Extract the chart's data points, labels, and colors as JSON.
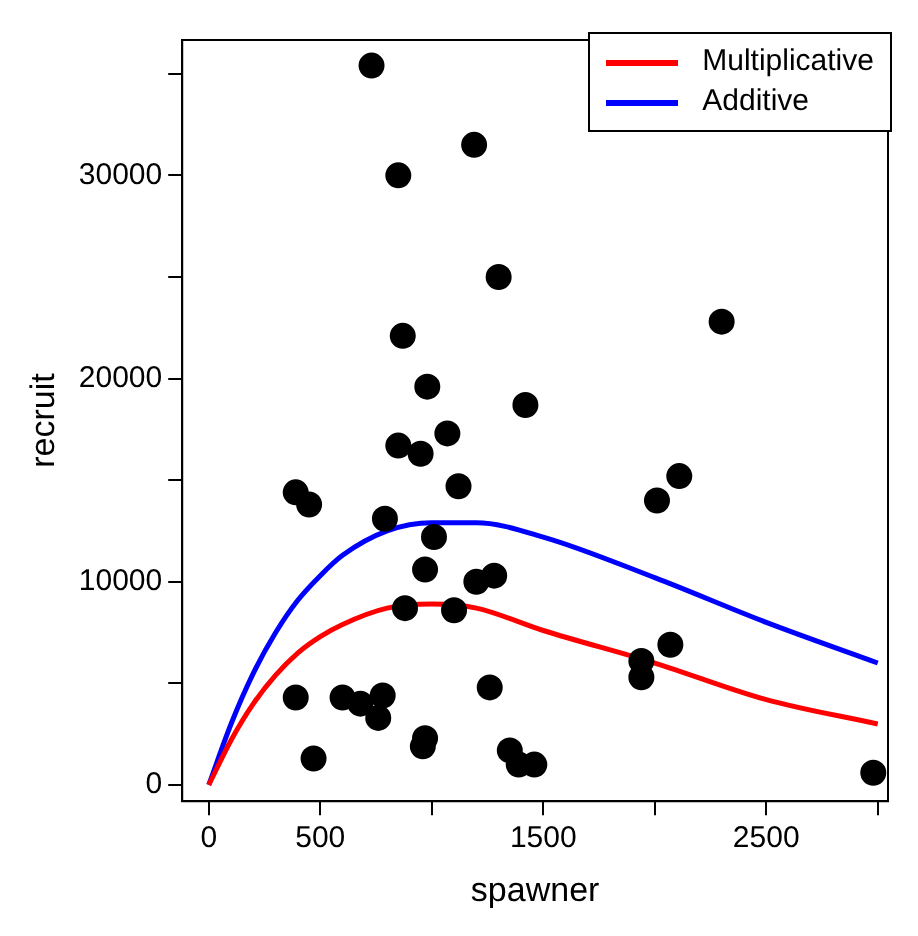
{
  "chart_data": {
    "type": "scatter",
    "xlabel": "spawner",
    "ylabel": "recruit",
    "xlim": [
      -119,
      3046
    ],
    "ylim": [
      -800,
      36660
    ],
    "xticks": [
      0,
      500,
      {
        "value": 1000,
        "label": null
      },
      1500,
      {
        "value": 2000,
        "label": null
      },
      2500,
      {
        "value": 3000,
        "label": null
      }
    ],
    "yticks": [
      0,
      {
        "value": 5000,
        "label": null
      },
      10000,
      {
        "value": 15000,
        "label": null
      },
      20000,
      {
        "value": 25000,
        "label": null
      },
      30000,
      {
        "value": 35000,
        "label": null
      }
    ],
    "legend": "top right",
    "grid": false,
    "marker": "circle",
    "series": [
      {
        "color": "#000000",
        "x": [
          730,
          850,
          1190,
          1300,
          870,
          980,
          1420,
          1070,
          850,
          950,
          1120,
          390,
          450,
          790,
          1010,
          970,
          1200,
          1280,
          880,
          1100,
          390,
          600,
          680,
          780,
          760,
          1260,
          970,
          960,
          470,
          1350,
          1390,
          1460,
          2010,
          2110,
          2300,
          1940,
          1940,
          2070,
          2980
        ],
        "values": [
          35400,
          30000,
          31500,
          25000,
          22100,
          19600,
          18700,
          17300,
          16700,
          16300,
          14700,
          14400,
          13800,
          13100,
          12200,
          10600,
          10000,
          10300,
          8700,
          8600,
          4300,
          4300,
          4000,
          4400,
          3300,
          4800,
          2300,
          1900,
          1300,
          1700,
          1000,
          1000,
          14000,
          15200,
          22800,
          6100,
          5300,
          6900,
          600
        ]
      },
      {
        "type": "line",
        "name": "Multiplicative",
        "color": "#ff0000",
        "marker": "none",
        "x": [
          0,
          100,
          200,
          300,
          400,
          500,
          600,
          800,
          1000,
          1200,
          1500,
          2000,
          2500,
          3000
        ],
        "values": [
          0,
          2200,
          4000,
          5400,
          6500,
          7300,
          7900,
          8700,
          8900,
          8700,
          7600,
          6000,
          4200,
          3000
        ]
      },
      {
        "type": "line",
        "name": "Additive",
        "color": "#0000ff",
        "marker": "none",
        "x": [
          0,
          100,
          200,
          300,
          400,
          500,
          600,
          800,
          1000,
          1200,
          1500,
          2000,
          2500,
          3000
        ],
        "values": [
          0,
          3000,
          5500,
          7500,
          9100,
          10300,
          11300,
          12500,
          12900,
          12900,
          12200,
          10200,
          8000,
          6000
        ]
      }
    ]
  }
}
